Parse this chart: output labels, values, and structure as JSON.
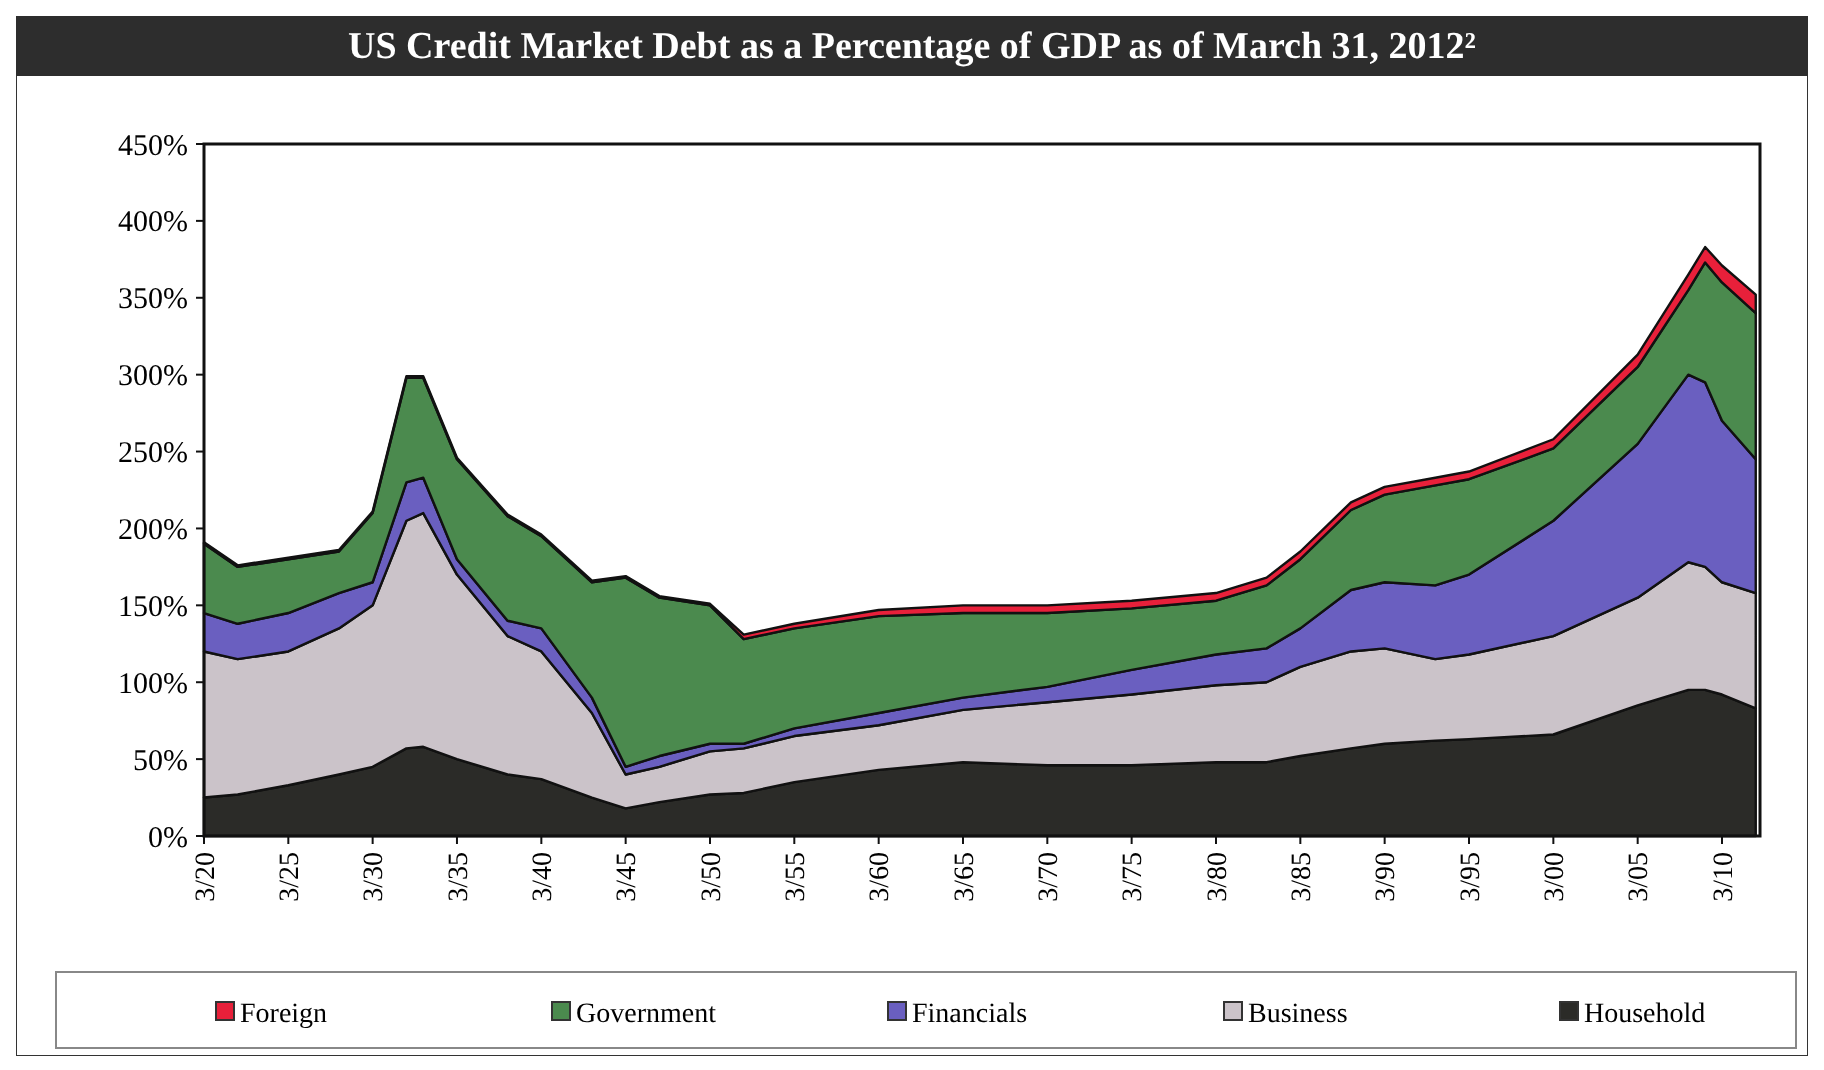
{
  "chart_data": {
    "type": "area",
    "stacked": true,
    "title": "US Credit Market Debt as a Percentage of GDP as of March 31, 2012²",
    "x": [
      "1920-03",
      "1922-03",
      "1925-03",
      "1928-03",
      "1930-03",
      "1932-03",
      "1933-03",
      "1935-03",
      "1938-03",
      "1940-03",
      "1943-03",
      "1945-03",
      "1947-03",
      "1950-03",
      "1952-03",
      "1955-03",
      "1960-03",
      "1965-03",
      "1970-03",
      "1975-03",
      "1980-03",
      "1983-03",
      "1985-03",
      "1988-03",
      "1990-03",
      "1993-03",
      "1995-03",
      "2000-03",
      "2005-03",
      "2008-03",
      "2009-03",
      "2010-03",
      "2012-03"
    ],
    "xlim": [
      "1920-03",
      "2012-06"
    ],
    "xticks": [
      {
        "value": "1920-03",
        "label": "3/20"
      },
      {
        "value": "1925-03",
        "label": "3/25"
      },
      {
        "value": "1930-03",
        "label": "3/30"
      },
      {
        "value": "1935-03",
        "label": "3/35"
      },
      {
        "value": "1940-03",
        "label": "3/40"
      },
      {
        "value": "1945-03",
        "label": "3/45"
      },
      {
        "value": "1950-03",
        "label": "3/50"
      },
      {
        "value": "1955-03",
        "label": "3/55"
      },
      {
        "value": "1960-03",
        "label": "3/60"
      },
      {
        "value": "1965-03",
        "label": "3/65"
      },
      {
        "value": "1970-03",
        "label": "3/70"
      },
      {
        "value": "1975-03",
        "label": "3/75"
      },
      {
        "value": "1980-03",
        "label": "3/80"
      },
      {
        "value": "1985-03",
        "label": "3/85"
      },
      {
        "value": "1990-03",
        "label": "3/90"
      },
      {
        "value": "1995-03",
        "label": "3/95"
      },
      {
        "value": "2000-03",
        "label": "3/00"
      },
      {
        "value": "2005-03",
        "label": "3/05"
      },
      {
        "value": "2010-03",
        "label": "3/10"
      }
    ],
    "ylim": [
      0,
      450
    ],
    "yticks": [
      {
        "value": 0,
        "label": "0%"
      },
      {
        "value": 50,
        "label": "50%"
      },
      {
        "value": 100,
        "label": "100%"
      },
      {
        "value": 150,
        "label": "150%"
      },
      {
        "value": 200,
        "label": "200%"
      },
      {
        "value": 250,
        "label": "250%"
      },
      {
        "value": 300,
        "label": "300%"
      },
      {
        "value": 350,
        "label": "350%"
      },
      {
        "value": 400,
        "label": "400%"
      },
      {
        "value": 450,
        "label": "450%"
      }
    ],
    "grid": false,
    "legend": "bottom",
    "series": [
      {
        "name": "Household",
        "color": "#2b2b28",
        "values": [
          25,
          27,
          33,
          40,
          45,
          57,
          58,
          50,
          40,
          37,
          25,
          18,
          22,
          27,
          28,
          35,
          43,
          48,
          46,
          46,
          48,
          48,
          52,
          57,
          60,
          62,
          63,
          66,
          85,
          95,
          95,
          92,
          83
        ]
      },
      {
        "name": "Business",
        "color": "#cbc3c9",
        "values": [
          95,
          88,
          87,
          95,
          105,
          148,
          152,
          120,
          90,
          83,
          55,
          22,
          23,
          28,
          29,
          30,
          29,
          34,
          41,
          46,
          50,
          52,
          58,
          63,
          62,
          53,
          55,
          64,
          70,
          83,
          80,
          73,
          75
        ]
      },
      {
        "name": "Financials",
        "color": "#6a5fc0",
        "values": [
          25,
          23,
          25,
          23,
          15,
          25,
          23,
          10,
          10,
          15,
          10,
          5,
          7,
          5,
          3,
          5,
          8,
          8,
          10,
          16,
          20,
          22,
          25,
          40,
          43,
          48,
          52,
          75,
          100,
          122,
          120,
          105,
          87
        ]
      },
      {
        "name": "Government",
        "color": "#4b8a4e",
        "values": [
          45,
          37,
          35,
          27,
          45,
          68,
          65,
          65,
          68,
          60,
          75,
          123,
          103,
          90,
          68,
          65,
          63,
          55,
          48,
          40,
          35,
          41,
          45,
          52,
          57,
          65,
          62,
          47,
          50,
          55,
          78,
          90,
          95
        ]
      },
      {
        "name": "Foreign",
        "color": "#e8203a",
        "values": [
          1,
          1,
          1,
          1,
          1,
          1,
          1,
          1,
          1,
          1,
          1,
          1,
          1,
          1,
          3,
          3,
          4,
          5,
          5,
          5,
          5,
          5,
          5,
          5,
          5,
          5,
          5,
          6,
          8,
          10,
          10,
          11,
          12
        ]
      }
    ]
  }
}
